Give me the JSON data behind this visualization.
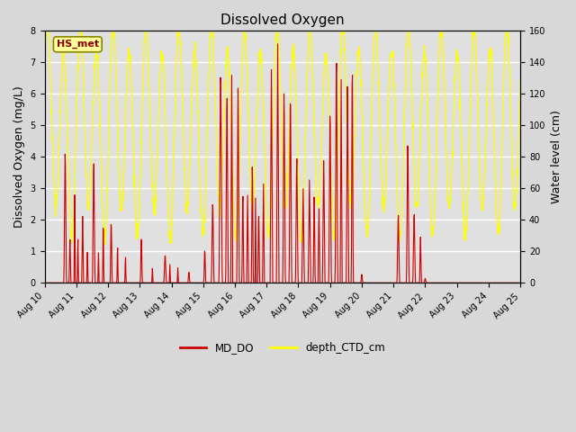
{
  "title": "Dissolved Oxygen",
  "ylabel_left": "Dissolved Oxygen (mg/L)",
  "ylabel_right": "Water level (cm)",
  "annotation_text": "HS_met",
  "ylim_left": [
    0.0,
    8.0
  ],
  "ylim_right": [
    0,
    160
  ],
  "yticks_left": [
    0.0,
    1.0,
    2.0,
    3.0,
    4.0,
    5.0,
    6.0,
    7.0,
    8.0
  ],
  "yticks_right": [
    0,
    20,
    40,
    60,
    80,
    100,
    120,
    140,
    160
  ],
  "xtick_labels": [
    "Aug 10",
    "Aug 11",
    "Aug 12",
    "Aug 13",
    "Aug 14",
    "Aug 15",
    "Aug 16",
    "Aug 17",
    "Aug 18",
    "Aug 19",
    "Aug 20",
    "Aug 21",
    "Aug 22",
    "Aug 23",
    "Aug 24",
    "Aug 25"
  ],
  "color_MD_DO": "#cc0000",
  "color_depth_CTD": "#ffff00",
  "legend_label_1": "MD_DO",
  "legend_label_2": "depth_CTD_cm",
  "bg_color": "#e0e0e0",
  "grid_color": "#ffffff",
  "title_fontsize": 11,
  "label_fontsize": 9,
  "tick_fontsize": 7,
  "fig_width": 6.4,
  "fig_height": 4.8,
  "dpi": 100
}
